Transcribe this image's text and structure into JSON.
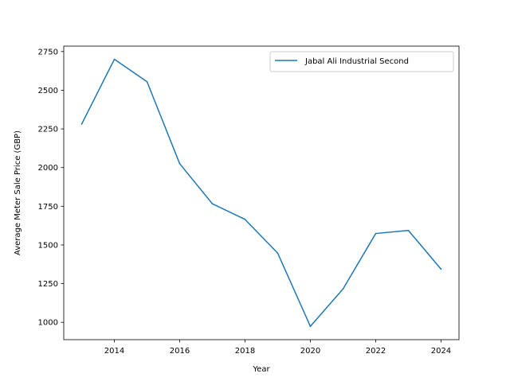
{
  "chart_data": {
    "type": "line",
    "title": "",
    "xlabel": "Year",
    "ylabel": "Average Meter Sale Price (GBP)",
    "xlim": [
      2012.45,
      2024.55
    ],
    "ylim": [
      888,
      2785
    ],
    "xticks": [
      2014,
      2016,
      2018,
      2020,
      2022,
      2024
    ],
    "xtick_labels": [
      "2014",
      "2016",
      "2018",
      "2020",
      "2022",
      "2024"
    ],
    "yticks": [
      1000,
      1250,
      1500,
      1750,
      2000,
      2250,
      2500,
      2750
    ],
    "ytick_labels": [
      "1000",
      "1250",
      "1500",
      "1750",
      "2000",
      "2250",
      "2500",
      "2750"
    ],
    "grid": false,
    "legend_position": "upper right",
    "colors": {
      "series": "#1f77b4",
      "axes": "#000000"
    },
    "x": [
      2013,
      2014,
      2015,
      2016,
      2017,
      2018,
      2019,
      2020,
      2021,
      2022,
      2023,
      2024
    ],
    "series": [
      {
        "name": "Jabal Ali Industrial Second",
        "values": [
          2282,
          2700,
          2555,
          2025,
          1766,
          1665,
          1447,
          974,
          1216,
          1574,
          1594,
          1344
        ]
      }
    ]
  }
}
